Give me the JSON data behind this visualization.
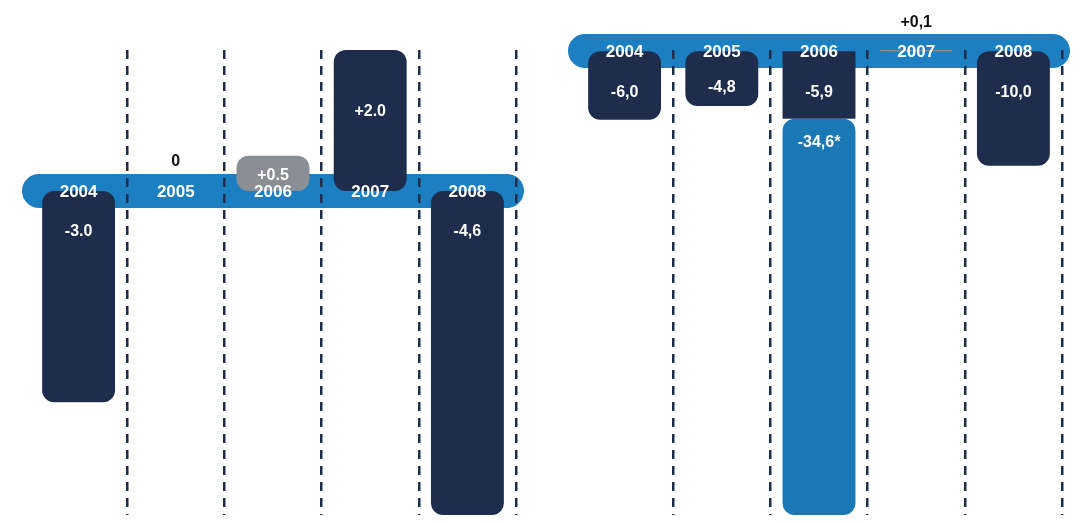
{
  "chart_data": [
    {
      "type": "bar",
      "categories": [
        "2004",
        "2005",
        "2006",
        "2007",
        "2008"
      ],
      "values": [
        -3.0,
        0,
        0.5,
        2.0,
        -4.6
      ],
      "colors": [
        "#1f2d4d",
        "#1f2d4d",
        "#8a8f96",
        "#1f2d4d",
        "#1f2d4d"
      ],
      "value_labels": [
        "-3.0",
        "0",
        "+0.5",
        "+2.0",
        "-4,6"
      ],
      "grid": "x"
    },
    {
      "type": "bar",
      "categories": [
        "2004",
        "2005",
        "2006",
        "2007",
        "2008"
      ],
      "stacked": true,
      "grid": "x",
      "series": [
        {
          "values": [
            -6.0,
            -4.8,
            -5.9,
            0.1,
            -10.0
          ],
          "colors": [
            "#1f2d4d",
            "#1f2d4d",
            "#1f2d4d",
            "#8a8f96",
            "#1f2d4d"
          ],
          "value_labels": [
            "-6,0",
            "-4,8",
            "-5,9",
            "+0,1",
            "-10,0"
          ]
        },
        {
          "values": [
            null,
            null,
            -34.6,
            null,
            null
          ],
          "color": "#1a78b4",
          "value_labels": [
            null,
            null,
            "-34,6*",
            null,
            null
          ]
        }
      ]
    }
  ]
}
